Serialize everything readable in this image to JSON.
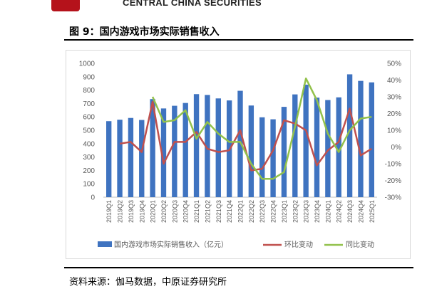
{
  "header": {
    "logo_text": "CENTRAL CHINA SECURITIES",
    "figure_title": "图 9：国内游戏市场实际销售收入"
  },
  "footer": {
    "source": "资料来源：伽马数据，中原证券研究所"
  },
  "colors": {
    "bar": "#3f73c0",
    "qoq_line": "#c0504d",
    "yoy_line": "#92c14b",
    "logo_red": "#b5121b"
  },
  "chart_data": {
    "type": "bar",
    "title": "",
    "xlabel": "",
    "ylabel": "",
    "categories": [
      "2019Q1",
      "2019Q2",
      "2019Q3",
      "2019Q4",
      "2020Q1",
      "2020Q2",
      "2020Q3",
      "2020Q4",
      "2021Q1",
      "2021Q2",
      "2021Q3",
      "2021Q4",
      "2022Q1",
      "2022Q2",
      "2022Q3",
      "2022Q4",
      "2023Q1",
      "2023Q2",
      "2023Q3",
      "2023Q4",
      "2024Q1",
      "2024Q2",
      "2024Q3",
      "2024Q4",
      "2025Q1"
    ],
    "y_ticks": [
      "0",
      "100",
      "200",
      "300",
      "400",
      "500",
      "600",
      "700",
      "800",
      "900",
      "1000"
    ],
    "y2_ticks": [
      "-30%",
      "-20%",
      "-10%",
      "0%",
      "10%",
      "20%",
      "30%",
      "40%",
      "50%"
    ],
    "ylim": [
      0,
      1000
    ],
    "y2lim": [
      -30,
      50
    ],
    "grid": false,
    "legend_position": "bottom",
    "series": [
      {
        "name": "国内游戏市场实际销售收入（亿元）",
        "type": "bar",
        "axis": "left",
        "values": [
          568,
          579,
          592,
          577,
          733,
          663,
          683,
          704,
          770,
          764,
          738,
          723,
          795,
          685,
          597,
          582,
          675,
          768,
          841,
          744,
          726,
          746,
          918,
          869,
          858
        ]
      },
      {
        "name": "环比变动",
        "type": "line",
        "axis": "right",
        "values": [
          null,
          2,
          3,
          -3,
          27,
          -10,
          3,
          3,
          9,
          -1,
          -3,
          -2,
          10,
          -14,
          -13,
          -2,
          16,
          14,
          10,
          -11,
          -2,
          3,
          23,
          -5,
          -1
        ]
      },
      {
        "name": "同比变动",
        "type": "line",
        "axis": "right",
        "values": [
          null,
          null,
          null,
          null,
          30,
          15,
          16,
          22,
          5,
          15,
          8,
          3,
          3,
          -10,
          -19,
          -19,
          -15,
          12,
          41,
          28,
          8,
          -3,
          10,
          17,
          18
        ]
      }
    ]
  }
}
